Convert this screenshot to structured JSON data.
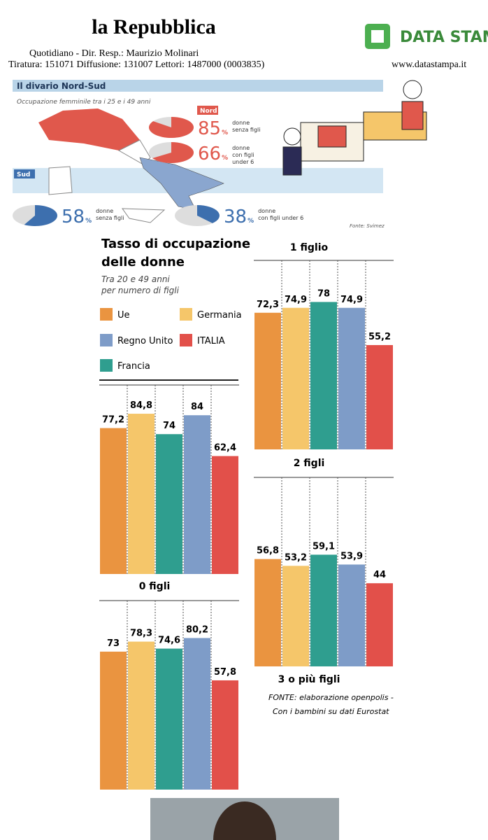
{
  "header": {
    "masthead": "la Repubblica",
    "agency": "DATA STAMPA",
    "line1": "Quotidiano   -  Dir. Resp.:  Maurizio Molinari",
    "line2": "Tiratura: 151071 Diffusione: 131007 Lettori: 1487000 (0003835)",
    "website": "www.datastampa.it"
  },
  "divario": {
    "title": "Il divario Nord-Sud",
    "subtitle": "Occupazione femminile tra i 25 e i 49 anni",
    "percent_sign": "%",
    "regions": [
      {
        "name": "Nord",
        "color": "#e0584c",
        "pies": [
          {
            "value": 85,
            "lines": [
              "donne",
              "senza figli"
            ]
          },
          {
            "value": 66,
            "lines": [
              "donne",
              "con figli",
              "under 6"
            ]
          }
        ]
      },
      {
        "name": "Sud",
        "color": "#3d6fae",
        "pies": [
          {
            "value": 58,
            "lines": [
              "donne",
              "senza figli"
            ]
          },
          {
            "value": 38,
            "lines": [
              "donne",
              "con figli under 6"
            ]
          }
        ]
      }
    ],
    "source": "Fonte: Svimez"
  },
  "tasso": {
    "title_lines": [
      "Tasso di occupazione",
      "delle donne"
    ],
    "subtitle_lines": [
      "Tra 20 e 49 anni",
      "per numero di figli"
    ],
    "legend": [
      {
        "name": "Ue",
        "color": "#ea9440"
      },
      {
        "name": "Germania",
        "color": "#f5c66a"
      },
      {
        "name": "Regno Unito",
        "color": "#7e9cc8"
      },
      {
        "name": "ITALIA",
        "color": "#e2504a"
      },
      {
        "name": "Francia",
        "color": "#2f9e8f"
      }
    ],
    "captions": [
      "1 figlio",
      "2 figli",
      "0 figli",
      "3 o più figli"
    ],
    "source_lines": [
      "FONTE: elaborazione openpolis -",
      "Con i bambini su dati Eurostat"
    ]
  },
  "chart_data": [
    {
      "type": "bar",
      "ylim": [
        0,
        100
      ],
      "colors": [
        "#ea9440",
        "#f5c66a",
        "#2f9e8f",
        "#7e9cc8",
        "#e2504a"
      ],
      "values": [
        77.2,
        84.8,
        74,
        84,
        62.4
      ],
      "value_labels": [
        "77,2",
        "84,8",
        "74",
        "84",
        "62,4"
      ]
    },
    {
      "type": "bar",
      "ylim": [
        0,
        100
      ],
      "colors": [
        "#ea9440",
        "#f5c66a",
        "#2f9e8f",
        "#7e9cc8",
        "#e2504a"
      ],
      "values": [
        72.3,
        74.9,
        78,
        74.9,
        55.2
      ],
      "value_labels": [
        "72,3",
        "74,9",
        "78",
        "74,9",
        "55,2"
      ]
    },
    {
      "type": "bar",
      "ylim": [
        0,
        100
      ],
      "colors": [
        "#ea9440",
        "#f5c66a",
        "#2f9e8f",
        "#7e9cc8",
        "#e2504a"
      ],
      "values": [
        56.8,
        53.2,
        59.1,
        53.9,
        44
      ],
      "value_labels": [
        "56,8",
        "53,2",
        "59,1",
        "53,9",
        "44"
      ]
    },
    {
      "type": "bar",
      "ylim": [
        0,
        100
      ],
      "colors": [
        "#ea9440",
        "#f5c66a",
        "#2f9e8f",
        "#7e9cc8",
        "#e2504a"
      ],
      "values": [
        73,
        78.3,
        74.6,
        80.2,
        57.8
      ],
      "value_labels": [
        "73",
        "78,3",
        "74,6",
        "80,2",
        "57,8"
      ]
    }
  ]
}
